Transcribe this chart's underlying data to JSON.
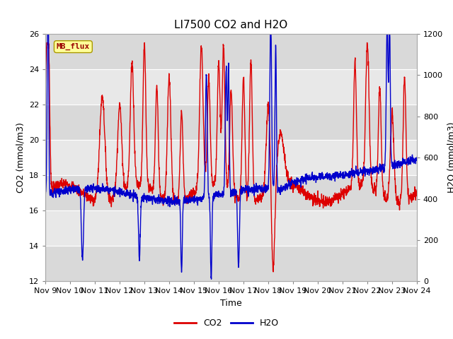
{
  "title": "LI7500 CO2 and H2O",
  "xlabel": "Time",
  "ylabel_left": "CO2 (mmol/m3)",
  "ylabel_right": "H2O (mmol/m3)",
  "ylim_left": [
    12,
    26
  ],
  "ylim_right": [
    0,
    1200
  ],
  "yticks_left": [
    12,
    14,
    16,
    18,
    20,
    22,
    24,
    26
  ],
  "yticks_right": [
    0,
    200,
    400,
    600,
    800,
    1000,
    1200
  ],
  "xtick_labels": [
    "Nov 9",
    "Nov 10",
    "Nov 11",
    "Nov 12",
    "Nov 13",
    "Nov 14",
    "Nov 15",
    "Nov 16",
    "Nov 17",
    "Nov 18",
    "Nov 19",
    "Nov 20",
    "Nov 21",
    "Nov 22",
    "Nov 23",
    "Nov 24"
  ],
  "co2_color": "#dd0000",
  "h2o_color": "#0000cc",
  "line_width": 1.0,
  "bg_color": "#ffffff",
  "plot_bg_color": "#e8e8e8",
  "grid_color": "#ffffff",
  "annotation_text": "MB_flux",
  "annotation_bg": "#ffff99",
  "annotation_border": "#cccc00",
  "title_fontsize": 11,
  "axis_fontsize": 9,
  "tick_fontsize": 8
}
